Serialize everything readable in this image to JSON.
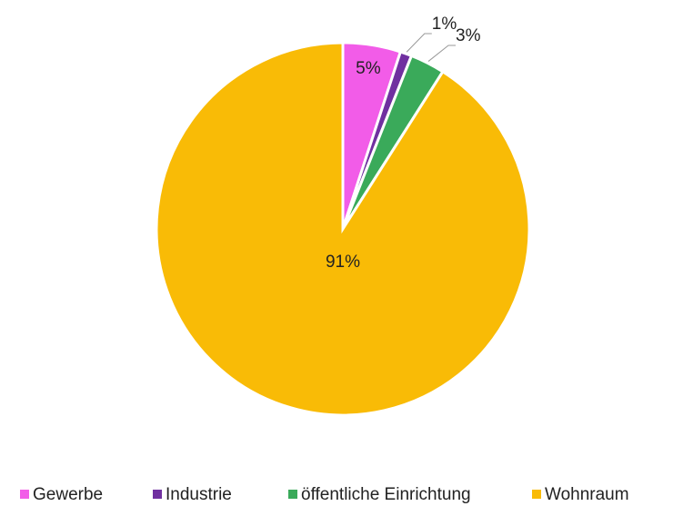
{
  "chart_data": {
    "type": "pie",
    "categories": [
      "Gewerbe",
      "Industrie",
      "öffentliche Einrichtung",
      "Wohnraum"
    ],
    "values": [
      5,
      1,
      3,
      91
    ],
    "value_labels": [
      "5%",
      "1%",
      "3%",
      "91%"
    ],
    "colors": [
      "#f25ce8",
      "#7030a0",
      "#3aaa5a",
      "#f9bb06"
    ],
    "legend": "bottom"
  }
}
